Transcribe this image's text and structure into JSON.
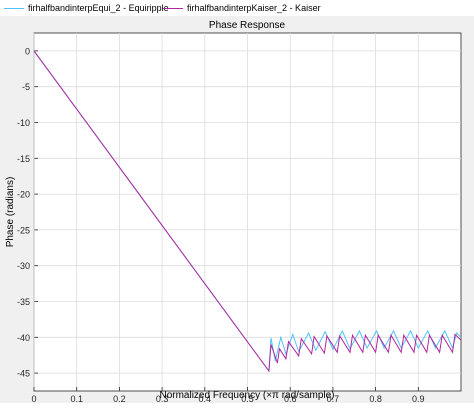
{
  "legend": {
    "entries": [
      {
        "name": "firhalfbandinterpEqui_2 - Equiripple",
        "color": "#4fc3f7"
      },
      {
        "name": "firhalfbandinterpKaiser_2 - Kaiser",
        "color": "#b0269c"
      }
    ]
  },
  "chart_data": {
    "type": "line",
    "title": "Phase Response",
    "xlabel": "Normalized Frequency  (×π rad/sample)",
    "ylabel": "Phase (radians)",
    "xlim": [
      0,
      1
    ],
    "ylim": [
      -47.5,
      2.5
    ],
    "xticks": [
      0,
      0.1,
      0.2,
      0.3,
      0.4,
      0.5,
      0.6,
      0.7,
      0.8,
      0.9
    ],
    "yticks": [
      0,
      -5,
      -10,
      -15,
      -20,
      -25,
      -30,
      -35,
      -40,
      -45
    ],
    "grid": true,
    "legend_position": "top",
    "series": [
      {
        "name": "firhalfbandinterpEqui_2 - Equiripple",
        "color": "#4fc3f7",
        "points": [
          [
            0,
            0
          ],
          [
            0.55,
            -44.7
          ],
          [
            0.555,
            -40.1
          ],
          [
            0.565,
            -43.3
          ],
          [
            0.578,
            -40.0
          ],
          [
            0.59,
            -42.3
          ],
          [
            0.606,
            -39.6
          ],
          [
            0.62,
            -42.0
          ],
          [
            0.643,
            -39.4
          ],
          [
            0.66,
            -41.8
          ],
          [
            0.682,
            -39.2
          ],
          [
            0.7,
            -41.7
          ],
          [
            0.722,
            -39.1
          ],
          [
            0.74,
            -41.6
          ],
          [
            0.762,
            -39.1
          ],
          [
            0.78,
            -41.5
          ],
          [
            0.802,
            -39.1
          ],
          [
            0.82,
            -41.5
          ],
          [
            0.842,
            -39.1
          ],
          [
            0.86,
            -41.5
          ],
          [
            0.882,
            -39.1
          ],
          [
            0.9,
            -41.5
          ],
          [
            0.922,
            -39.1
          ],
          [
            0.94,
            -41.5
          ],
          [
            0.962,
            -39.1
          ],
          [
            0.98,
            -41.5
          ],
          [
            0.99,
            -39.4
          ],
          [
            1.0,
            -40.0
          ]
        ]
      },
      {
        "name": "firhalfbandinterpKaiser_2 - Kaiser",
        "color": "#b0269c",
        "points": [
          [
            0,
            0
          ],
          [
            0.55,
            -44.7
          ],
          [
            0.555,
            -41.0
          ],
          [
            0.57,
            -43.6
          ],
          [
            0.575,
            -41.6
          ],
          [
            0.59,
            -43.0
          ],
          [
            0.596,
            -40.6
          ],
          [
            0.62,
            -42.6
          ],
          [
            0.626,
            -40.2
          ],
          [
            0.65,
            -42.3
          ],
          [
            0.656,
            -39.9
          ],
          [
            0.68,
            -42.2
          ],
          [
            0.686,
            -39.8
          ],
          [
            0.71,
            -42.1
          ],
          [
            0.716,
            -39.8
          ],
          [
            0.74,
            -42.1
          ],
          [
            0.746,
            -39.7
          ],
          [
            0.77,
            -42.1
          ],
          [
            0.776,
            -39.7
          ],
          [
            0.8,
            -42.1
          ],
          [
            0.806,
            -39.7
          ],
          [
            0.83,
            -42.1
          ],
          [
            0.836,
            -39.7
          ],
          [
            0.86,
            -42.1
          ],
          [
            0.866,
            -39.7
          ],
          [
            0.89,
            -42.1
          ],
          [
            0.896,
            -39.7
          ],
          [
            0.92,
            -42.1
          ],
          [
            0.926,
            -39.7
          ],
          [
            0.95,
            -42.1
          ],
          [
            0.956,
            -39.7
          ],
          [
            0.98,
            -42.1
          ],
          [
            0.986,
            -39.6
          ],
          [
            1.0,
            -40.4
          ]
        ]
      }
    ]
  }
}
